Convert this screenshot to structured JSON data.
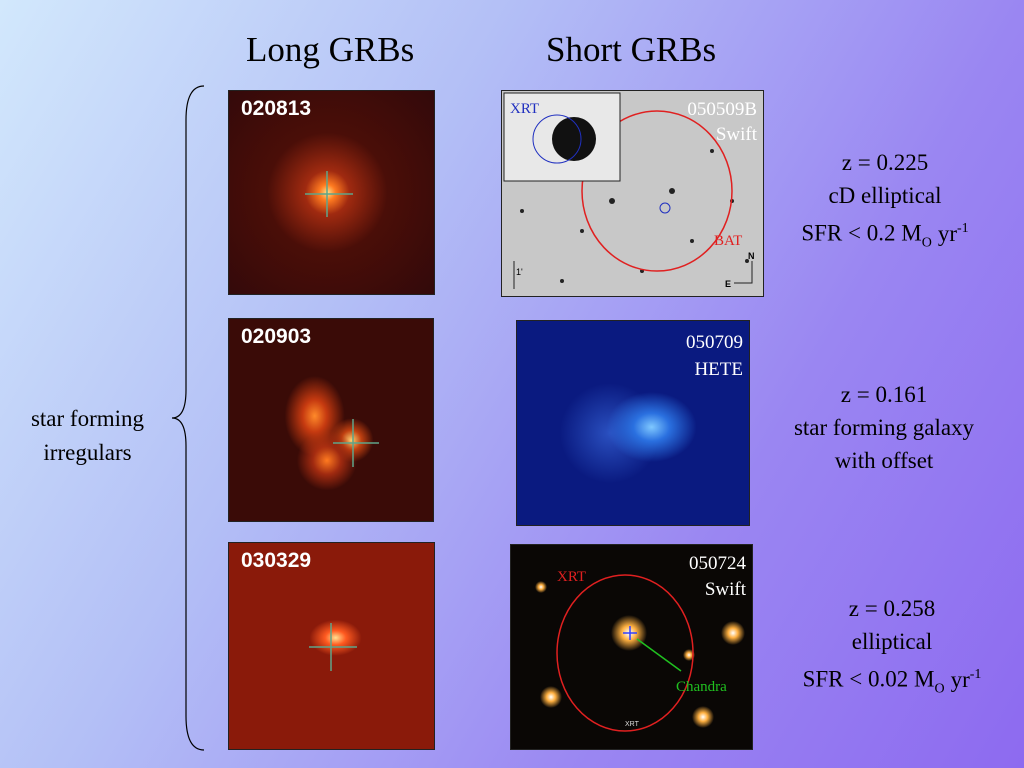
{
  "headers": {
    "long": "Long GRBs",
    "short": "Short GRBs"
  },
  "side_label": [
    "star forming",
    "irregulars"
  ],
  "long_grbs": [
    {
      "id": "020813"
    },
    {
      "id": "020903"
    },
    {
      "id": "030329"
    }
  ],
  "short_grbs": [
    {
      "id": "050509B",
      "mission": "Swift",
      "labels": [
        "XRT",
        "BAT",
        "N",
        "E",
        "1'"
      ]
    },
    {
      "id": "050709",
      "mission": "HETE"
    },
    {
      "id": "050724",
      "mission": "Swift",
      "labels": [
        "XRT",
        "Chandra",
        "XRT"
      ]
    }
  ],
  "hosts": [
    {
      "lines": [
        "z = 0.225",
        "cD elliptical"
      ],
      "sfr": {
        "prefix": "SFR < 0.2 M",
        "sub": "O",
        "unit": "yr",
        "sup": "-1"
      }
    },
    {
      "lines": [
        "z = 0.161",
        "star forming galaxy",
        "with offset"
      ]
    },
    {
      "lines": [
        "z = 0.258",
        "elliptical"
      ],
      "sfr": {
        "prefix": "SFR < 0.02 M",
        "sub": "O",
        "unit": "yr",
        "sup": "-1"
      }
    }
  ]
}
